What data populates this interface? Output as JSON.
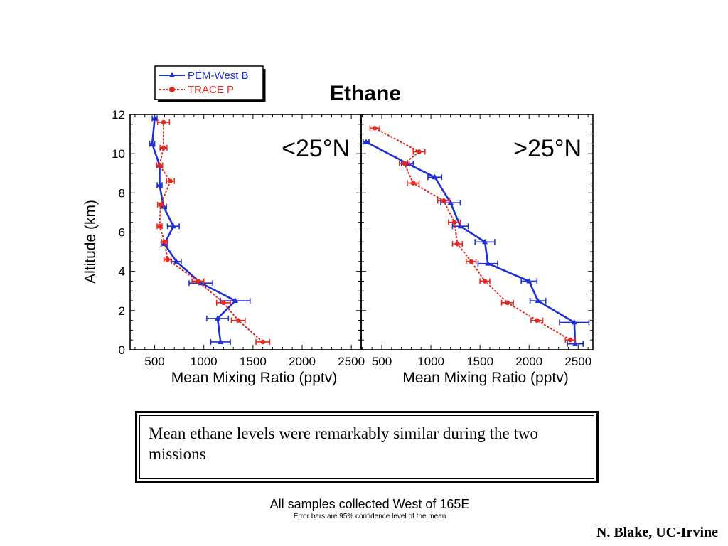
{
  "chart_data": {
    "type": "line",
    "title": "Ethane",
    "ylabel": "Altitude (km)",
    "ylim": [
      0,
      12
    ],
    "y_ticks": [
      "0",
      "2",
      "4",
      "6",
      "8",
      "10",
      "12"
    ],
    "legend": {
      "placement": "top-left",
      "entries": [
        "PEM-West B",
        "TRACE P"
      ]
    },
    "colors": {
      "PEM-West B": "#1f2fd6",
      "TRACE P": "#e8281e"
    },
    "panels": [
      {
        "label": "<25°N",
        "xlabel": "Mean Mixing Ratio (pptv)",
        "xlim": [
          250,
          2600
        ],
        "x_ticks": [
          "500",
          "1000",
          "1500",
          "2000",
          "2500"
        ],
        "series": [
          {
            "name": "PEM-West B",
            "points": [
              {
                "y": 11.8,
                "x": 500,
                "err": 25
              },
              {
                "y": 10.5,
                "x": 475,
                "err": 25
              },
              {
                "y": 9.4,
                "x": 550,
                "err": 30
              },
              {
                "y": 8.4,
                "x": 550,
                "err": 25
              },
              {
                "y": 7.3,
                "x": 590,
                "err": 30
              },
              {
                "y": 6.3,
                "x": 690,
                "err": 60
              },
              {
                "y": 5.4,
                "x": 600,
                "err": 35
              },
              {
                "y": 4.5,
                "x": 720,
                "err": 50
              },
              {
                "y": 3.4,
                "x": 970,
                "err": 120
              },
              {
                "y": 2.5,
                "x": 1320,
                "err": 150
              },
              {
                "y": 1.6,
                "x": 1140,
                "err": 110
              },
              {
                "y": 0.4,
                "x": 1170,
                "err": 100
              }
            ]
          },
          {
            "name": "TRACE P",
            "points": [
              {
                "y": 11.6,
                "x": 590,
                "err": 60
              },
              {
                "y": 10.3,
                "x": 590,
                "err": 35
              },
              {
                "y": 9.4,
                "x": 550,
                "err": 30
              },
              {
                "y": 8.6,
                "x": 660,
                "err": 40
              },
              {
                "y": 7.4,
                "x": 560,
                "err": 30
              },
              {
                "y": 6.3,
                "x": 550,
                "err": 25
              },
              {
                "y": 5.5,
                "x": 600,
                "err": 30
              },
              {
                "y": 4.6,
                "x": 630,
                "err": 35
              },
              {
                "y": 3.5,
                "x": 940,
                "err": 60
              },
              {
                "y": 2.4,
                "x": 1200,
                "err": 70
              },
              {
                "y": 1.5,
                "x": 1350,
                "err": 70
              },
              {
                "y": 0.4,
                "x": 1600,
                "err": 70
              }
            ]
          }
        ]
      },
      {
        "label": ">25°N",
        "xlabel": "Mean Mixing Ratio (pptv)",
        "xlim": [
          290,
          2650
        ],
        "x_ticks": [
          "500",
          "1000",
          "1500",
          "2000",
          "2500"
        ],
        "series": [
          {
            "name": "PEM-West B",
            "points": [
              {
                "y": 10.6,
                "x": 340,
                "err": 30
              },
              {
                "y": 9.5,
                "x": 760,
                "err": 60
              },
              {
                "y": 8.8,
                "x": 1040,
                "err": 70
              },
              {
                "y": 7.5,
                "x": 1200,
                "err": 100
              },
              {
                "y": 6.3,
                "x": 1300,
                "err": 80
              },
              {
                "y": 5.5,
                "x": 1550,
                "err": 100
              },
              {
                "y": 4.4,
                "x": 1580,
                "err": 100
              },
              {
                "y": 3.5,
                "x": 2000,
                "err": 80
              },
              {
                "y": 2.5,
                "x": 2090,
                "err": 80
              },
              {
                "y": 1.4,
                "x": 2460,
                "err": 150
              },
              {
                "y": 0.3,
                "x": 2470,
                "err": 80
              }
            ]
          },
          {
            "name": "TRACE P",
            "points": [
              {
                "y": 11.3,
                "x": 430,
                "err": 50
              },
              {
                "y": 10.1,
                "x": 880,
                "err": 60
              },
              {
                "y": 9.5,
                "x": 730,
                "err": 50
              },
              {
                "y": 8.5,
                "x": 820,
                "err": 60
              },
              {
                "y": 7.6,
                "x": 1130,
                "err": 60
              },
              {
                "y": 6.5,
                "x": 1240,
                "err": 60
              },
              {
                "y": 5.4,
                "x": 1270,
                "err": 50
              },
              {
                "y": 4.5,
                "x": 1410,
                "err": 50
              },
              {
                "y": 3.5,
                "x": 1550,
                "err": 50
              },
              {
                "y": 2.4,
                "x": 1780,
                "err": 60
              },
              {
                "y": 1.5,
                "x": 2080,
                "err": 60
              },
              {
                "y": 0.5,
                "x": 2420,
                "err": 50
              }
            ]
          }
        ]
      }
    ]
  },
  "caption": "Mean ethane levels were remarkably similar during the two missions",
  "footnote_1": "All samples collected West of 165E",
  "footnote_2": "Error bars are 95% confidence level of the mean",
  "credit": "N. Blake, UC-Irvine"
}
